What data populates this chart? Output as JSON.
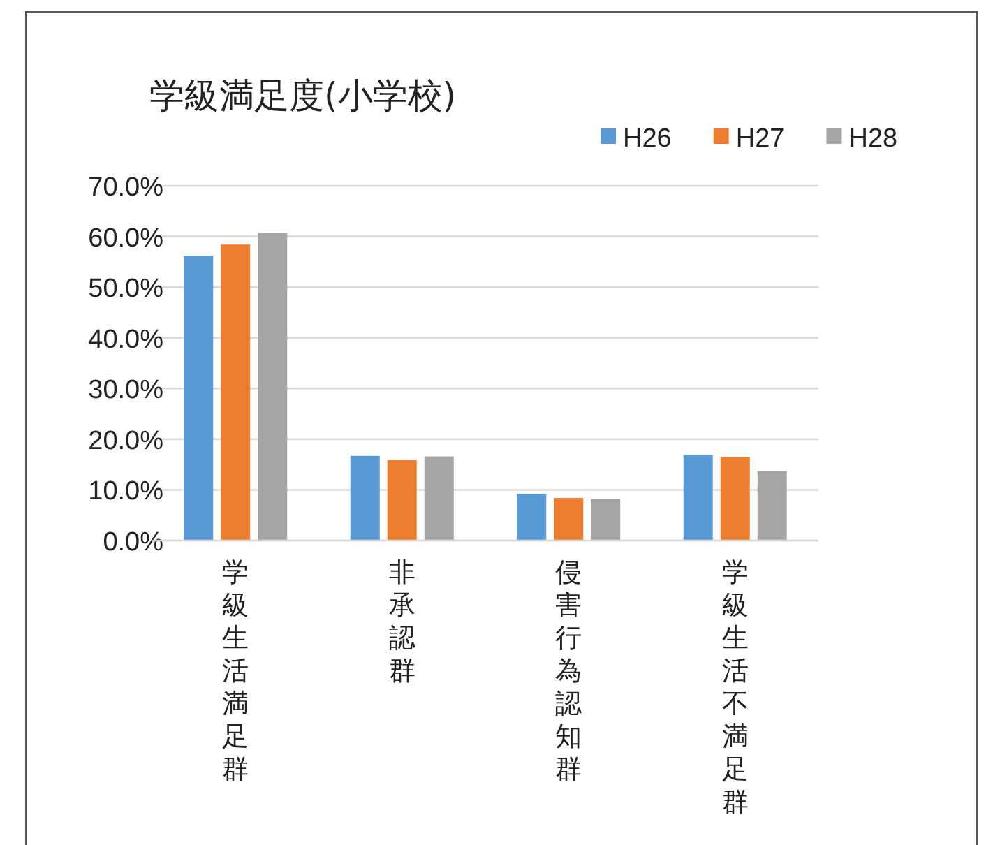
{
  "chart_data": {
    "type": "bar",
    "title": "学級満足度(小学校)",
    "categories": [
      "学級生活満足群",
      "非承認群",
      "侵害行為認知群",
      "学級生活不満足群"
    ],
    "series": [
      {
        "name": "H26",
        "color": "#5b9bd5",
        "values": [
          56.2,
          16.7,
          9.2,
          16.9
        ]
      },
      {
        "name": "H27",
        "color": "#ed7d31",
        "values": [
          58.4,
          15.9,
          8.4,
          16.5
        ]
      },
      {
        "name": "H28",
        "color": "#a5a5a5",
        "values": [
          60.7,
          16.6,
          8.2,
          13.7
        ]
      }
    ],
    "ylim": [
      0,
      70
    ],
    "yticks": [
      {
        "value": 0,
        "label": "0.0%"
      },
      {
        "value": 10,
        "label": "10.0%"
      },
      {
        "value": 20,
        "label": "20.0%"
      },
      {
        "value": 30,
        "label": "30.0%"
      },
      {
        "value": 40,
        "label": "40.0%"
      },
      {
        "value": 50,
        "label": "50.0%"
      },
      {
        "value": 60,
        "label": "60.0%"
      },
      {
        "value": 70,
        "label": "70.0%"
      }
    ],
    "grid": "y",
    "legend": "top right"
  }
}
